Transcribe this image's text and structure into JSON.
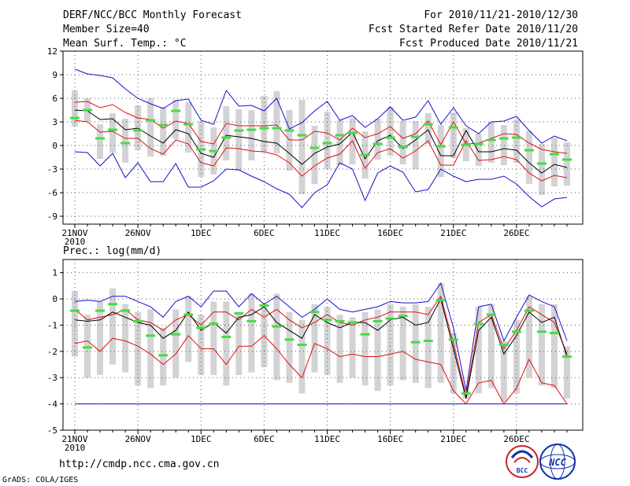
{
  "header": {
    "title": "DERF/NCC/BCC Monthly Forecast",
    "member_size": "Member Size=40",
    "variable": "Mean Surf. Temp.: °C",
    "period": "For 2010/11/21-2010/12/30",
    "started": "Fcst Started Refer Date 2010/11/20",
    "produced": "Fcst Produced Date 2010/11/21"
  },
  "footer": {
    "url": "http://cmdp.ncc.cma.gov.cn",
    "grads": "GrADS: COLA/IGES",
    "logo_left": "BCC",
    "logo_right": "NCC"
  },
  "colors": {
    "box": "#d3d3d6",
    "median": "#44dd44",
    "mean": "#000000",
    "inner": "#dd1111",
    "outer": "#1111cc",
    "grid": "#555555"
  },
  "chart_data": [
    {
      "type": "box-line",
      "title": "Mean Surf. Temp.: °C",
      "xlabel": "",
      "ylabel": "°C",
      "ylim": [
        -10,
        12
      ],
      "yticks": [
        -9,
        -6,
        -3,
        0,
        3,
        6,
        9,
        12
      ],
      "x_tick_labels": [
        "21NOV",
        "26NOV",
        "1DEC",
        "6DEC",
        "11DEC",
        "16DEC",
        "21DEC",
        "26DEC"
      ],
      "x_tick_days": [
        1,
        6,
        11,
        16,
        21,
        26,
        31,
        36
      ],
      "year_label": "2010",
      "grid": true,
      "days": [
        1,
        2,
        3,
        4,
        5,
        6,
        7,
        8,
        9,
        10,
        11,
        12,
        13,
        14,
        15,
        16,
        17,
        18,
        19,
        20,
        21,
        22,
        23,
        24,
        25,
        26,
        27,
        28,
        29,
        30,
        31,
        32,
        33,
        34,
        35,
        36,
        37,
        38,
        39,
        40
      ],
      "series": [
        {
          "name": "max",
          "values": [
            9.7,
            9.1,
            8.9,
            8.6,
            7.2,
            6.0,
            5.3,
            4.7,
            5.7,
            5.9,
            3.2,
            2.7,
            7.0,
            5.0,
            5.1,
            4.4,
            6.0,
            2.1,
            2.9,
            4.4,
            5.6,
            3.2,
            3.8,
            2.3,
            3.4,
            4.9,
            3.2,
            3.6,
            5.7,
            2.7,
            4.8,
            2.5,
            1.5,
            3.0,
            3.1,
            3.7,
            1.9,
            0.3,
            1.2,
            0.6
          ]
        },
        {
          "name": "upper",
          "values": [
            5.5,
            5.6,
            4.8,
            5.2,
            4.2,
            3.5,
            3.3,
            2.2,
            3.1,
            2.8,
            0.5,
            0.2,
            2.8,
            2.5,
            2.5,
            2.5,
            2.6,
            0.7,
            0.7,
            1.8,
            1.6,
            0.7,
            2.2,
            1.0,
            1.5,
            2.4,
            0.9,
            1.5,
            3.1,
            0.1,
            3.0,
            0.2,
            0.3,
            0.9,
            1.5,
            1.4,
            0.3,
            -0.5,
            -0.8,
            -1.0
          ]
        },
        {
          "name": "mean",
          "values": [
            4.5,
            4.4,
            3.3,
            3.4,
            2.0,
            2.2,
            1.2,
            0.3,
            2.0,
            1.5,
            -1.0,
            -1.5,
            1.3,
            1.1,
            0.9,
            0.5,
            0.3,
            -1.0,
            -2.4,
            -1.0,
            -0.2,
            0.2,
            1.7,
            -1.7,
            0.6,
            1.3,
            -0.4,
            0.7,
            2.0,
            -1.3,
            -1.3,
            1.9,
            -0.8,
            -0.8,
            -0.4,
            -0.6,
            -2.2,
            -3.5,
            -2.4,
            -2.8
          ]
        },
        {
          "name": "lower",
          "values": [
            3.2,
            3.0,
            1.7,
            1.8,
            0.9,
            0.9,
            -0.4,
            -1.1,
            0.7,
            0.2,
            -2.2,
            -2.6,
            -0.3,
            -0.4,
            -0.7,
            -0.8,
            -1.2,
            -2.2,
            -3.9,
            -2.6,
            -1.6,
            -1.1,
            0.6,
            -2.9,
            -0.9,
            -0.4,
            -1.6,
            -0.7,
            0.6,
            -2.5,
            -2.5,
            0.6,
            -1.9,
            -1.8,
            -1.4,
            -1.8,
            -3.5,
            -4.5,
            -3.8,
            -4.1
          ]
        },
        {
          "name": "min",
          "values": [
            -0.8,
            -0.9,
            -2.6,
            -1.0,
            -4.1,
            -2.2,
            -4.6,
            -4.6,
            -2.3,
            -5.3,
            -5.3,
            -4.5,
            -3.0,
            -3.1,
            -3.9,
            -4.6,
            -5.5,
            -6.2,
            -7.9,
            -6.0,
            -5.0,
            -2.2,
            -3.0,
            -7.0,
            -3.5,
            -2.6,
            -3.4,
            -5.9,
            -5.6,
            -3.0,
            -3.9,
            -4.6,
            -4.3,
            -4.3,
            -3.9,
            -4.9,
            -6.5,
            -7.8,
            -6.8,
            -6.6
          ]
        },
        {
          "name": "median",
          "values": [
            3.5,
            4.5,
            0.9,
            2.0,
            0.3,
            1.9,
            3.2,
            2.6,
            4.4,
            2.7,
            -0.5,
            -0.7,
            1.0,
            1.9,
            2.0,
            2.2,
            2.2,
            1.9,
            1.3,
            -0.3,
            0.3,
            1.3,
            1.6,
            -1.2,
            0.2,
            1.0,
            -0.2,
            1.1,
            2.7,
            -0.1,
            2.3,
            0.1,
            0.2,
            0.7,
            0.9,
            1.0,
            -0.6,
            -2.3,
            -1.1,
            -1.8
          ]
        },
        {
          "name": "box_top",
          "values": [
            7.0,
            6.0,
            2.7,
            4.1,
            3.4,
            5.1,
            6.0,
            4.9,
            5.8,
            5.5,
            3.1,
            2.3,
            5.0,
            4.6,
            4.5,
            6.3,
            6.9,
            4.5,
            5.8,
            2.5,
            4.3,
            3.2,
            3.5,
            1.8,
            3.4,
            4.9,
            3.1,
            3.1,
            4.1,
            2.6,
            4.2,
            2.2,
            1.5,
            3.0,
            2.6,
            3.3,
            1.9,
            0.2,
            1.0,
            0.4
          ]
        },
        {
          "name": "box_bottom",
          "values": [
            2.4,
            3.0,
            -1.7,
            -0.9,
            -2.2,
            -0.6,
            -1.4,
            -1.3,
            0.8,
            -0.9,
            -4.0,
            -3.7,
            -1.9,
            -3.2,
            -1.9,
            -0.9,
            -1.0,
            -3.2,
            -6.2,
            -4.9,
            -3.0,
            -2.5,
            -2.4,
            -4.2,
            -1.8,
            -1.3,
            -2.4,
            -3.0,
            0.2,
            -4.0,
            -1.6,
            -2.0,
            -2.6,
            -2.2,
            -2.5,
            -2.2,
            -4.9,
            -6.3,
            -5.2,
            -5.1
          ]
        }
      ]
    },
    {
      "type": "box-line",
      "title": "Prec.: log(mm/d)",
      "xlabel": "",
      "ylabel": "log(mm/d)",
      "ylim": [
        -5,
        1.5
      ],
      "yticks": [
        -5,
        -4,
        -3,
        -2,
        -1,
        0,
        1
      ],
      "x_tick_labels": [
        "21NOV",
        "26NOV",
        "1DEC",
        "6DEC",
        "11DEC",
        "16DEC",
        "21DEC",
        "26DEC"
      ],
      "x_tick_days": [
        1,
        6,
        11,
        16,
        21,
        26,
        31,
        36
      ],
      "year_label": "2010",
      "grid": true,
      "days": [
        1,
        2,
        3,
        4,
        5,
        6,
        7,
        8,
        9,
        10,
        11,
        12,
        13,
        14,
        15,
        16,
        17,
        18,
        19,
        20,
        21,
        22,
        23,
        24,
        25,
        26,
        27,
        28,
        29,
        30,
        31,
        32,
        33,
        34,
        35,
        36,
        37,
        38,
        39,
        40
      ],
      "series": [
        {
          "name": "max",
          "values": [
            -0.1,
            -0.05,
            -0.1,
            0.1,
            0.1,
            -0.1,
            -0.3,
            -0.7,
            -0.1,
            0.1,
            -0.3,
            0.3,
            0.3,
            -0.3,
            0.2,
            -0.2,
            0.1,
            -0.3,
            -0.7,
            -0.4,
            0.0,
            -0.4,
            -0.5,
            -0.4,
            -0.3,
            -0.1,
            -0.15,
            -0.15,
            -0.1,
            0.6,
            -1.1,
            -3.5,
            -0.3,
            -0.2,
            -1.6,
            -0.7,
            0.15,
            -0.1,
            -0.3,
            -1.6
          ]
        },
        {
          "name": "upper",
          "values": [
            -0.4,
            -0.8,
            -0.7,
            -0.6,
            -0.4,
            -0.8,
            -0.9,
            -1.2,
            -0.8,
            -0.6,
            -1.0,
            -0.5,
            -0.5,
            -0.8,
            -0.4,
            -0.7,
            -0.4,
            -0.8,
            -1.1,
            -0.9,
            -0.6,
            -0.9,
            -1.0,
            -0.8,
            -0.7,
            -0.5,
            -0.5,
            -0.5,
            -0.6,
            0.1,
            -1.7,
            -3.7,
            -0.9,
            -0.6,
            -1.9,
            -1.2,
            -0.3,
            -0.6,
            -0.9,
            -2.1
          ]
        },
        {
          "name": "mean",
          "values": [
            -0.8,
            -0.85,
            -0.8,
            -0.5,
            -0.7,
            -0.9,
            -1.0,
            -1.5,
            -1.2,
            -0.5,
            -1.2,
            -0.9,
            -1.3,
            -0.7,
            -0.6,
            -0.3,
            -0.9,
            -1.2,
            -1.5,
            -0.6,
            -0.9,
            -1.1,
            -0.9,
            -0.9,
            -1.2,
            -0.8,
            -0.7,
            -1.0,
            -0.9,
            0.0,
            -1.9,
            -3.8,
            -1.2,
            -0.7,
            -2.1,
            -1.4,
            -0.5,
            -0.9,
            -0.7,
            -2.2
          ]
        },
        {
          "name": "lower",
          "values": [
            -1.7,
            -1.6,
            -2.0,
            -1.5,
            -1.6,
            -1.8,
            -2.1,
            -2.5,
            -2.1,
            -1.4,
            -1.9,
            -1.9,
            -2.5,
            -1.8,
            -1.8,
            -1.4,
            -1.9,
            -2.5,
            -3.0,
            -1.7,
            -1.9,
            -2.2,
            -2.1,
            -2.2,
            -2.2,
            -2.1,
            -2.0,
            -2.3,
            -2.4,
            -2.5,
            -3.5,
            -4.0,
            -3.2,
            -3.1,
            -4.0,
            -3.4,
            -2.3,
            -3.2,
            -3.3,
            -4.0
          ]
        },
        {
          "name": "min",
          "values": [
            -4,
            -4,
            -4,
            -4,
            -4,
            -4,
            -4,
            -4,
            -4,
            -4,
            -4,
            -4,
            -4,
            -4,
            -4,
            -4,
            -4,
            -4,
            -4,
            -4,
            -4,
            -4,
            -4,
            -4,
            -4,
            -4,
            -4,
            -4,
            -4,
            -4,
            -4,
            -4,
            -4,
            -4,
            -4,
            -4,
            -4,
            -4,
            -4,
            -4
          ]
        },
        {
          "name": "median",
          "values": [
            -0.45,
            -1.85,
            -0.45,
            -0.2,
            -0.45,
            -0.85,
            -1.4,
            -2.15,
            -1.35,
            -0.6,
            -1.1,
            -0.95,
            -1.45,
            -0.55,
            -0.85,
            -0.25,
            -1.05,
            -1.55,
            -1.75,
            -0.5,
            -0.8,
            -0.85,
            -0.9,
            -1.35,
            -0.85,
            -0.75,
            -0.65,
            -1.65,
            -1.6,
            -0.05,
            -1.55,
            -3.6,
            -0.95,
            -0.6,
            -1.75,
            -1.25,
            -0.45,
            -1.25,
            -1.3,
            -2.2
          ]
        },
        {
          "name": "box_top",
          "values": [
            0.3,
            -0.6,
            -0.1,
            0.4,
            -0.2,
            -0.5,
            -0.4,
            -1.1,
            -0.4,
            0.1,
            -0.6,
            -0.1,
            -0.1,
            -0.5,
            0.2,
            -0.2,
            0.2,
            -0.5,
            -0.8,
            -0.2,
            -0.3,
            -0.6,
            -0.7,
            -0.5,
            -0.4,
            -0.2,
            -0.3,
            -0.2,
            -0.3,
            0.6,
            -1.3,
            -3.5,
            -0.3,
            -0.2,
            -1.6,
            -0.8,
            0.1,
            -0.2,
            -0.2,
            -1.8
          ]
        },
        {
          "name": "box_bottom",
          "values": [
            -2.2,
            -3.0,
            -2.9,
            -2.5,
            -2.8,
            -3.3,
            -3.4,
            -3.3,
            -3.0,
            -2.4,
            -2.9,
            -2.9,
            -3.3,
            -2.9,
            -2.8,
            -2.6,
            -3.1,
            -3.2,
            -3.6,
            -2.8,
            -2.9,
            -3.2,
            -3.0,
            -3.3,
            -3.5,
            -3.3,
            -3.1,
            -3.2,
            -3.4,
            -3.2,
            -3.6,
            -3.8,
            -3.6,
            -3.4,
            -3.9,
            -3.6,
            -3.0,
            -3.3,
            -3.4,
            -3.8
          ]
        }
      ]
    }
  ]
}
